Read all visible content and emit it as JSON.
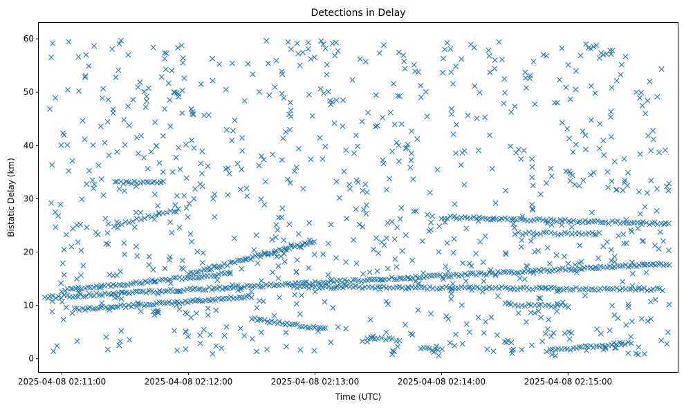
{
  "chart_data": {
    "type": "scatter",
    "title": "Detections in Delay",
    "xlabel": "Time (UTC)",
    "ylabel": "Bistatic Delay (km)",
    "marker": "x",
    "color": "#1f77b4",
    "grid": false,
    "xlim": [
      "2025-04-08 02:10:49",
      "2025-04-08 02:15:52"
    ],
    "ylim": [
      -2.5,
      63
    ],
    "xticks": [
      "2025-04-08 02:11:00",
      "2025-04-08 02:12:00",
      "2025-04-08 02:13:00",
      "2025-04-08 02:14:00",
      "2025-04-08 02:15:00"
    ],
    "yticks": [
      0,
      10,
      20,
      30,
      40,
      50,
      60
    ],
    "tracks": [
      {
        "t_start": "2025-04-08 02:10:52",
        "t_end": "2025-04-08 02:15:48",
        "y_start": 11.5,
        "y_end": 17.8,
        "count": 230
      },
      {
        "t_start": "2025-04-08 02:11:00",
        "t_end": "2025-04-08 02:12:20",
        "y_start": 12.8,
        "y_end": 16.0,
        "count": 60
      },
      {
        "t_start": "2025-04-08 02:12:00",
        "t_end": "2025-04-08 02:13:00",
        "y_start": 15.8,
        "y_end": 22.0,
        "count": 50
      },
      {
        "t_start": "2025-04-08 02:11:06",
        "t_end": "2025-04-08 02:12:30",
        "y_start": 9.2,
        "y_end": 11.6,
        "count": 70
      },
      {
        "t_start": "2025-04-08 02:12:30",
        "t_end": "2025-04-08 02:13:05",
        "y_start": 7.5,
        "y_end": 5.5,
        "count": 30
      },
      {
        "t_start": "2025-04-08 02:12:50",
        "t_end": "2025-04-08 02:15:45",
        "y_start": 13.5,
        "y_end": 13.0,
        "count": 120
      },
      {
        "t_start": "2025-04-08 02:11:25",
        "t_end": "2025-04-08 02:11:48",
        "y_start": 33.0,
        "y_end": 33.2,
        "count": 18
      },
      {
        "t_start": "2025-04-08 02:11:25",
        "t_end": "2025-04-08 02:11:55",
        "y_start": 25.0,
        "y_end": 28.0,
        "count": 18
      },
      {
        "t_start": "2025-04-08 02:14:00",
        "t_end": "2025-04-08 02:15:48",
        "y_start": 26.5,
        "y_end": 25.3,
        "count": 80
      },
      {
        "t_start": "2025-04-08 02:14:35",
        "t_end": "2025-04-08 02:15:15",
        "y_start": 23.5,
        "y_end": 23.5,
        "count": 25
      },
      {
        "t_start": "2025-04-08 02:14:30",
        "t_end": "2025-04-08 02:15:00",
        "y_start": 10.2,
        "y_end": 9.8,
        "count": 20
      },
      {
        "t_start": "2025-04-08 02:14:50",
        "t_end": "2025-04-08 02:15:30",
        "y_start": 1.5,
        "y_end": 3.0,
        "count": 30
      },
      {
        "t_start": "2025-04-08 02:13:25",
        "t_end": "2025-04-08 02:13:40",
        "y_start": 4.0,
        "y_end": 3.5,
        "count": 10
      },
      {
        "t_start": "2025-04-08 02:13:50",
        "t_end": "2025-04-08 02:14:00",
        "y_start": 2.0,
        "y_end": 1.6,
        "count": 8
      }
    ],
    "clutter": {
      "count": 900,
      "y_range": [
        0.5,
        59.8
      ]
    }
  }
}
